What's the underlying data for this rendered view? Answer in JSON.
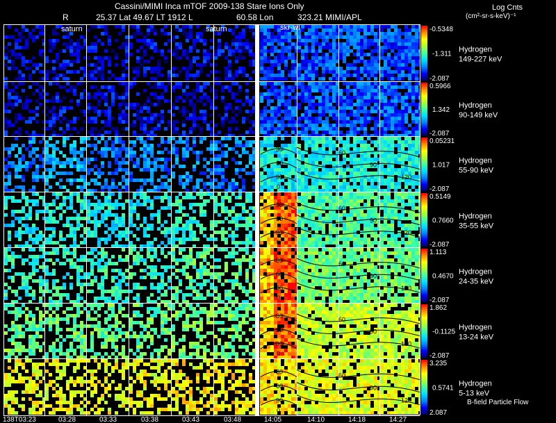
{
  "header": {
    "title_line": "Cassini/MIMI Inca mTOF  2009-138   Stare   Ions Only",
    "line2_r": "R",
    "line2_info": "25.37 Lat 49.67 LT 1912 L",
    "line2_lon": "60.58 Lon",
    "line2_apl": "323.21  MIMI/APL",
    "log_title": "Log Cnts",
    "log_units": "(cm²-sr-s-keV)⁻¹"
  },
  "labels": {
    "saturn1": "saturn",
    "saturn2": "saturn",
    "skr": "skr-wl",
    "bfield": "B-field Particle Flow"
  },
  "time_labels": [
    "138T03:23",
    "03:28",
    "03:33",
    "03:38",
    "03:43",
    "03:48",
    "14:05",
    "14:10",
    "14:18",
    "14:27"
  ],
  "colors": {
    "background": "#000000",
    "grid_line": "#ffffff",
    "contour": "#000000",
    "colormap": [
      "#000066",
      "#0000ff",
      "#0088ff",
      "#00e0ff",
      "#40ffa0",
      "#b0ff30",
      "#ffff00",
      "#ff8800",
      "#ff0000"
    ]
  },
  "chart_data": {
    "type": "heatmap",
    "title": "Cassini/MIMI Inca mTOF  2009-138   Stare   Ions Only",
    "colorbar_label": "Log Cnts (cm²-sr-s-keV)⁻¹",
    "columns": [
      "138T03:23",
      "03:28",
      "03:33",
      "03:38",
      "03:43",
      "03:48",
      "14:05",
      "14:10",
      "14:18",
      "14:27"
    ],
    "rows": [
      {
        "species": "Hydrogen",
        "energy": "149-227 keV",
        "cb_max": "-0.5348",
        "cb_mid": "-1.311",
        "cb_min": "-2.087",
        "level": [
          0.1,
          0.1,
          0.1,
          0.1,
          0.1,
          0.1,
          0.18,
          0.18,
          0.18,
          0.18
        ]
      },
      {
        "species": "Hydrogen",
        "energy": "90-149 keV",
        "cb_max": "0.5966",
        "cb_mid": "1.342",
        "cb_min": "-2.087",
        "level": [
          0.1,
          0.1,
          0.1,
          0.1,
          0.1,
          0.1,
          0.2,
          0.2,
          0.2,
          0.2
        ]
      },
      {
        "species": "Hydrogen",
        "energy": "55-90 keV",
        "cb_max": "0.05231",
        "cb_mid": "1.017",
        "cb_min": "-2.087",
        "level": [
          0.25,
          0.32,
          0.25,
          0.25,
          0.25,
          0.25,
          0.4,
          0.42,
          0.42,
          0.42
        ]
      },
      {
        "species": "Hydrogen",
        "energy": "35-55 keV",
        "cb_max": "0.5149",
        "cb_mid": "0.7660",
        "cb_min": "-2.087",
        "level": [
          0.4,
          0.42,
          0.4,
          0.4,
          0.45,
          0.45,
          0.8,
          0.5,
          0.5,
          0.5
        ]
      },
      {
        "species": "Hydrogen",
        "energy": "24-35 keV",
        "cb_max": "1.113",
        "cb_mid": "0.4670",
        "cb_min": "-2.087",
        "level": [
          0.45,
          0.45,
          0.45,
          0.45,
          0.5,
          0.5,
          0.82,
          0.55,
          0.55,
          0.55
        ]
      },
      {
        "species": "Hydrogen",
        "energy": "13-24 keV",
        "cb_max": "1.862",
        "cb_mid": "-0.1125",
        "cb_min": "-2.087",
        "level": [
          0.52,
          0.52,
          0.52,
          0.52,
          0.55,
          0.55,
          0.78,
          0.65,
          0.65,
          0.65
        ]
      },
      {
        "species": "Hydrogen",
        "energy": "5-13 keV",
        "cb_max": "3.235",
        "cb_mid": "0.5741",
        "cb_min": "2.087",
        "level": [
          0.72,
          0.72,
          0.72,
          0.72,
          0.75,
          0.75,
          0.76,
          0.7,
          0.7,
          0.7
        ]
      }
    ],
    "contour_labels": [
      "0",
      "30",
      "60",
      "90",
      "120"
    ]
  }
}
